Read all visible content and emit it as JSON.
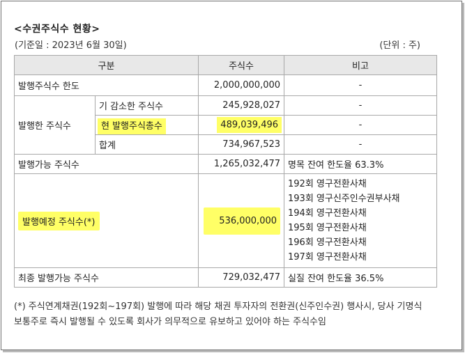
{
  "title": "<수권주식수 현황>",
  "base_date": "(기준일 : 2023년 6월 30일)",
  "unit": "(단위 : 주)",
  "headers": {
    "category": "구분",
    "shares": "주식수",
    "remark": "비고"
  },
  "rows": {
    "limit": {
      "label": "발행주식수 한도",
      "value": "2,000,000,000",
      "remark": "-"
    },
    "issued": {
      "label": "발행한 주식수",
      "sub": [
        {
          "label": "기 감소한 주식수",
          "value": "245,928,027",
          "remark": "-"
        },
        {
          "label": "현 발행주식총수",
          "value": "489,039,496",
          "remark": "-"
        },
        {
          "label": "합계",
          "value": "734,967,523",
          "remark": "-"
        }
      ]
    },
    "available": {
      "label": "발행가능 주식수",
      "value": "1,265,032,477",
      "remark": "명목 잔여 한도율 63.3%"
    },
    "planned": {
      "label": "발행예정 주식수(*)",
      "value": "536,000,000",
      "notes": [
        "192회 영구전환사채",
        "193회 영구신주인수권부사채",
        "194회 영구전환사채",
        "195회 영구전환사채",
        "196회 영구전환사채",
        "197회 영구전환사채"
      ]
    },
    "final": {
      "label": "최종 발행가능 주식수",
      "value": "729,032,477",
      "remark": "실질 잔여 한도율 36.5%"
    }
  },
  "footnote": "(*) 주식연계채권(192회~197회) 발행에 따라 해당 채권 투자자의 전환권(신주인수권) 행사시, 당사 기명식 보통주로 즉시 발행될 수 있도록 회사가 의무적으로 유보하고 있어야 하는 주식수임",
  "colors": {
    "highlight": "#ffff66",
    "header_bg": "#e8e8e8",
    "border": "#a8a8a8"
  }
}
